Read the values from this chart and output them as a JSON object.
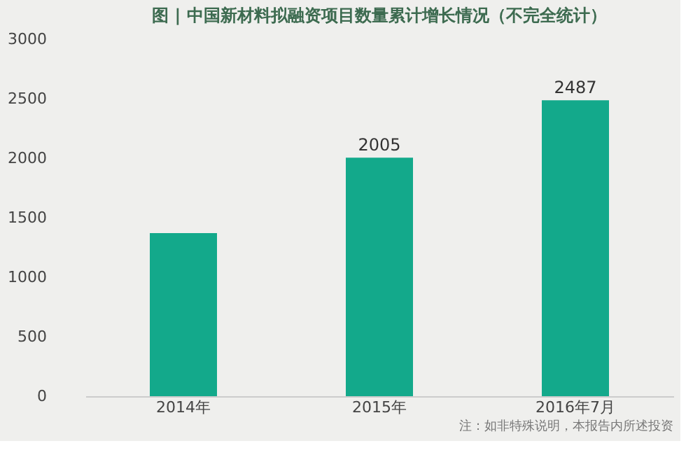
{
  "chart_data": {
    "type": "bar",
    "title": "图 | 中国新材料拟融资项目数量累计增长情况（不完全统计）",
    "categories": [
      "2014年",
      "2015年",
      "2016年7月"
    ],
    "values": [
      1370,
      2005,
      2487
    ],
    "value_labels": [
      null,
      "2005",
      "2487"
    ],
    "color": "#13a98b",
    "ylim": [
      0,
      3000
    ],
    "yticks": [
      0,
      500,
      1000,
      1500,
      2000,
      2500,
      3000
    ],
    "grid": false,
    "annotations": [
      "注：如非特殊说明，本报告内所述投资"
    ]
  }
}
